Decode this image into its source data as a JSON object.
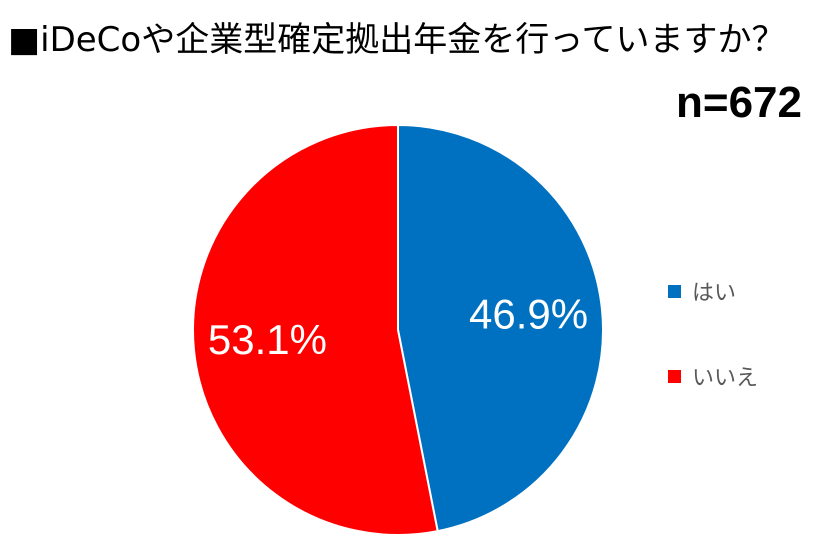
{
  "header": {
    "title": "■iDeCoや企業型確定拠出年金を行っていますか？",
    "sample_size": "n=672"
  },
  "colors": {
    "yes": "#0070C0",
    "no": "#FF0000"
  },
  "chart_data": {
    "type": "pie",
    "title": "■iDeCoや企業型確定拠出年金を行っていますか？",
    "categories": [
      "はい",
      "いいえ"
    ],
    "values": [
      46.9,
      53.1
    ],
    "data_labels": [
      "46.9%",
      "53.1%"
    ],
    "colors": [
      "#0070C0",
      "#FF0000"
    ],
    "legend_placement": "right",
    "start_angle": "12 o'clock",
    "direction": "clockwise"
  },
  "legend": {
    "items": [
      {
        "label": "はい",
        "color": "#0070C0"
      },
      {
        "label": "いいえ",
        "color": "#FF0000"
      }
    ]
  }
}
